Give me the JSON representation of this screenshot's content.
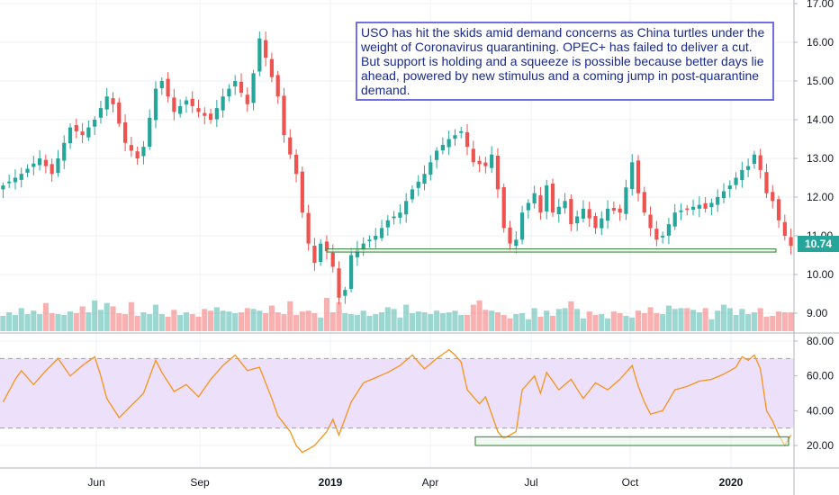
{
  "annotation": {
    "text": "USO has hit the skids amid demand concerns as China turtles under the weight of Coronavirus quarantining. OPEC+ has failed to deliver a cut. But support is holding and a squeeze is possible because better days lie ahead, powered by new stimulus and a coming jump in post-quarantine demand."
  },
  "last_price": "10.74",
  "colors": {
    "up": "#26a69a",
    "down": "#ef5350",
    "rsi_line": "#f7931a",
    "rsi_band": "#ece0fb",
    "support_zone": "#2e7d32",
    "annotation_border": "#7070e0"
  },
  "chart_data": [
    {
      "type": "candlestick",
      "title": "",
      "price_ticks": [
        "17.00",
        "16.00",
        "15.00",
        "14.00",
        "13.00",
        "12.00",
        "11.00",
        "10.00",
        "9.00"
      ],
      "ylim": [
        8.7,
        17.0
      ],
      "support_zone": [
        10.58,
        10.66
      ],
      "last_value": 10.74,
      "date_ticks": [
        {
          "label": "Jun",
          "bold": false
        },
        {
          "label": "Sep",
          "bold": false
        },
        {
          "label": "2019",
          "bold": true
        },
        {
          "label": "Apr",
          "bold": false
        },
        {
          "label": "Jul",
          "bold": false
        },
        {
          "label": "Oct",
          "bold": false
        },
        {
          "label": "2020",
          "bold": true
        }
      ],
      "close_path": [
        [
          0,
          12.3
        ],
        [
          3,
          12.6
        ],
        [
          6,
          13.0
        ],
        [
          8,
          12.6
        ],
        [
          11,
          13.8
        ],
        [
          13,
          13.6
        ],
        [
          15,
          14.0
        ],
        [
          17,
          14.6
        ],
        [
          18,
          14.4
        ],
        [
          20,
          13.4
        ],
        [
          22,
          13.0
        ],
        [
          23,
          13.3
        ],
        [
          25,
          14.8
        ],
        [
          26,
          15.0
        ],
        [
          28,
          14.2
        ],
        [
          30,
          14.5
        ],
        [
          32,
          14.2
        ],
        [
          34,
          14.0
        ],
        [
          36,
          14.6
        ],
        [
          38,
          15.0
        ],
        [
          40,
          14.4
        ],
        [
          41,
          15.2
        ],
        [
          42,
          16.1
        ],
        [
          43,
          15.6
        ],
        [
          45,
          14.6
        ],
        [
          46,
          13.6
        ],
        [
          48,
          12.6
        ],
        [
          49,
          11.6
        ],
        [
          50,
          10.8
        ],
        [
          51,
          10.3
        ],
        [
          52,
          10.8
        ],
        [
          53,
          10.6
        ],
        [
          54,
          10.2
        ],
        [
          55,
          9.4
        ],
        [
          56,
          9.6
        ],
        [
          57,
          10.5
        ],
        [
          59,
          10.8
        ],
        [
          61,
          11.0
        ],
        [
          63,
          11.4
        ],
        [
          65,
          11.6
        ],
        [
          67,
          12.2
        ],
        [
          69,
          12.6
        ],
        [
          71,
          13.2
        ],
        [
          73,
          13.5
        ],
        [
          75,
          13.7
        ],
        [
          76,
          13.3
        ],
        [
          77,
          12.9
        ],
        [
          79,
          12.8
        ],
        [
          80,
          13.1
        ],
        [
          81,
          12.2
        ],
        [
          82,
          11.2
        ],
        [
          83,
          10.8
        ],
        [
          84,
          10.9
        ],
        [
          85,
          11.6
        ],
        [
          87,
          12.1
        ],
        [
          88,
          11.6
        ],
        [
          89,
          12.3
        ],
        [
          90,
          11.6
        ],
        [
          92,
          11.9
        ],
        [
          93,
          11.3
        ],
        [
          95,
          11.7
        ],
        [
          97,
          11.2
        ],
        [
          99,
          11.7
        ],
        [
          101,
          11.6
        ],
        [
          103,
          12.9
        ],
        [
          104,
          12.1
        ],
        [
          105,
          11.6
        ],
        [
          106,
          11.2
        ],
        [
          107,
          10.9
        ],
        [
          108,
          11.0
        ],
        [
          110,
          11.6
        ],
        [
          112,
          11.7
        ],
        [
          114,
          11.8
        ],
        [
          115,
          11.7
        ],
        [
          117,
          12.0
        ],
        [
          119,
          12.3
        ],
        [
          121,
          12.7
        ],
        [
          122,
          12.8
        ],
        [
          123,
          13.1
        ],
        [
          124,
          12.7
        ],
        [
          125,
          12.1
        ],
        [
          126,
          11.9
        ],
        [
          127,
          11.4
        ],
        [
          128,
          11.0
        ],
        [
          129,
          10.74
        ]
      ],
      "volume_levels": [
        0.18,
        0.22,
        0.19,
        0.27,
        0.2,
        0.24,
        0.2,
        0.33,
        0.21,
        0.2,
        0.19,
        0.23,
        0.21,
        0.29,
        0.22,
        0.36,
        0.25,
        0.33,
        0.29,
        0.21,
        0.2,
        0.34,
        0.18,
        0.22,
        0.2,
        0.31,
        0.2,
        0.17,
        0.25,
        0.19,
        0.22,
        0.2,
        0.17,
        0.26,
        0.24,
        0.28,
        0.24,
        0.23,
        0.21,
        0.22,
        0.27,
        0.26,
        0.24,
        0.21,
        0.3,
        0.22,
        0.2,
        0.35,
        0.19,
        0.23,
        0.24,
        0.21,
        0.16,
        0.39,
        0.22,
        0.34,
        0.21,
        0.2,
        0.19,
        0.24,
        0.18,
        0.2,
        0.22,
        0.28,
        0.26,
        0.16,
        0.31,
        0.21,
        0.23,
        0.22,
        0.2,
        0.24,
        0.21,
        0.22,
        0.24,
        0.19,
        0.19,
        0.31,
        0.36,
        0.25,
        0.24,
        0.22,
        0.19,
        0.15,
        0.2,
        0.21,
        0.14,
        0.27,
        0.17,
        0.24,
        0.18,
        0.26,
        0.27,
        0.35,
        0.26,
        0.15,
        0.23,
        0.19,
        0.2,
        0.15,
        0.23,
        0.21,
        0.18,
        0.16,
        0.24,
        0.21,
        0.28,
        0.21,
        0.2,
        0.3,
        0.26,
        0.27,
        0.27,
        0.25,
        0.22,
        0.27,
        0.14,
        0.24,
        0.31,
        0.27,
        0.19,
        0.26,
        0.2,
        0.22,
        0.27,
        0.17,
        0.18,
        0.23,
        0.22,
        0.22
      ]
    },
    {
      "type": "line",
      "title": "",
      "ticks": [
        "80.00",
        "60.00",
        "40.00",
        "20.00"
      ],
      "ylim": [
        10,
        82
      ],
      "band": [
        30,
        70
      ],
      "support_zone": [
        20,
        25
      ],
      "rsi_path": [
        [
          0,
          45
        ],
        [
          2,
          58
        ],
        [
          3,
          63
        ],
        [
          5,
          55
        ],
        [
          7,
          63
        ],
        [
          9,
          70
        ],
        [
          11,
          60
        ],
        [
          13,
          66
        ],
        [
          15,
          71
        ],
        [
          16,
          60
        ],
        [
          17,
          47
        ],
        [
          19,
          36
        ],
        [
          21,
          43
        ],
        [
          23,
          50
        ],
        [
          25,
          69
        ],
        [
          26,
          62
        ],
        [
          28,
          51
        ],
        [
          30,
          55
        ],
        [
          32,
          48
        ],
        [
          34,
          58
        ],
        [
          36,
          66
        ],
        [
          38,
          72
        ],
        [
          40,
          63
        ],
        [
          42,
          65
        ],
        [
          44,
          47
        ],
        [
          45,
          37
        ],
        [
          47,
          28
        ],
        [
          48,
          20
        ],
        [
          49,
          16
        ],
        [
          51,
          20
        ],
        [
          53,
          28
        ],
        [
          54,
          35
        ],
        [
          55,
          26
        ],
        [
          57,
          45
        ],
        [
          59,
          56
        ],
        [
          61,
          59
        ],
        [
          63,
          62
        ],
        [
          65,
          66
        ],
        [
          67,
          72
        ],
        [
          69,
          64
        ],
        [
          71,
          70
        ],
        [
          73,
          75
        ],
        [
          74,
          72
        ],
        [
          75,
          68
        ],
        [
          76,
          52
        ],
        [
          78,
          44
        ],
        [
          79,
          48
        ],
        [
          80,
          38
        ],
        [
          81,
          28
        ],
        [
          82,
          24
        ],
        [
          84,
          28
        ],
        [
          85,
          52
        ],
        [
          87,
          60
        ],
        [
          88,
          50
        ],
        [
          89,
          62
        ],
        [
          91,
          52
        ],
        [
          93,
          58
        ],
        [
          95,
          47
        ],
        [
          97,
          56
        ],
        [
          99,
          52
        ],
        [
          101,
          58
        ],
        [
          103,
          66
        ],
        [
          104,
          54
        ],
        [
          105,
          45
        ],
        [
          106,
          38
        ],
        [
          108,
          40
        ],
        [
          110,
          52
        ],
        [
          112,
          54
        ],
        [
          114,
          57
        ],
        [
          116,
          58
        ],
        [
          118,
          61
        ],
        [
          120,
          65
        ],
        [
          121,
          71
        ],
        [
          122,
          69
        ],
        [
          123,
          72
        ],
        [
          124,
          64
        ],
        [
          125,
          40
        ],
        [
          126,
          34
        ],
        [
          127,
          26
        ],
        [
          128,
          20
        ],
        [
          129,
          26
        ]
      ]
    }
  ]
}
